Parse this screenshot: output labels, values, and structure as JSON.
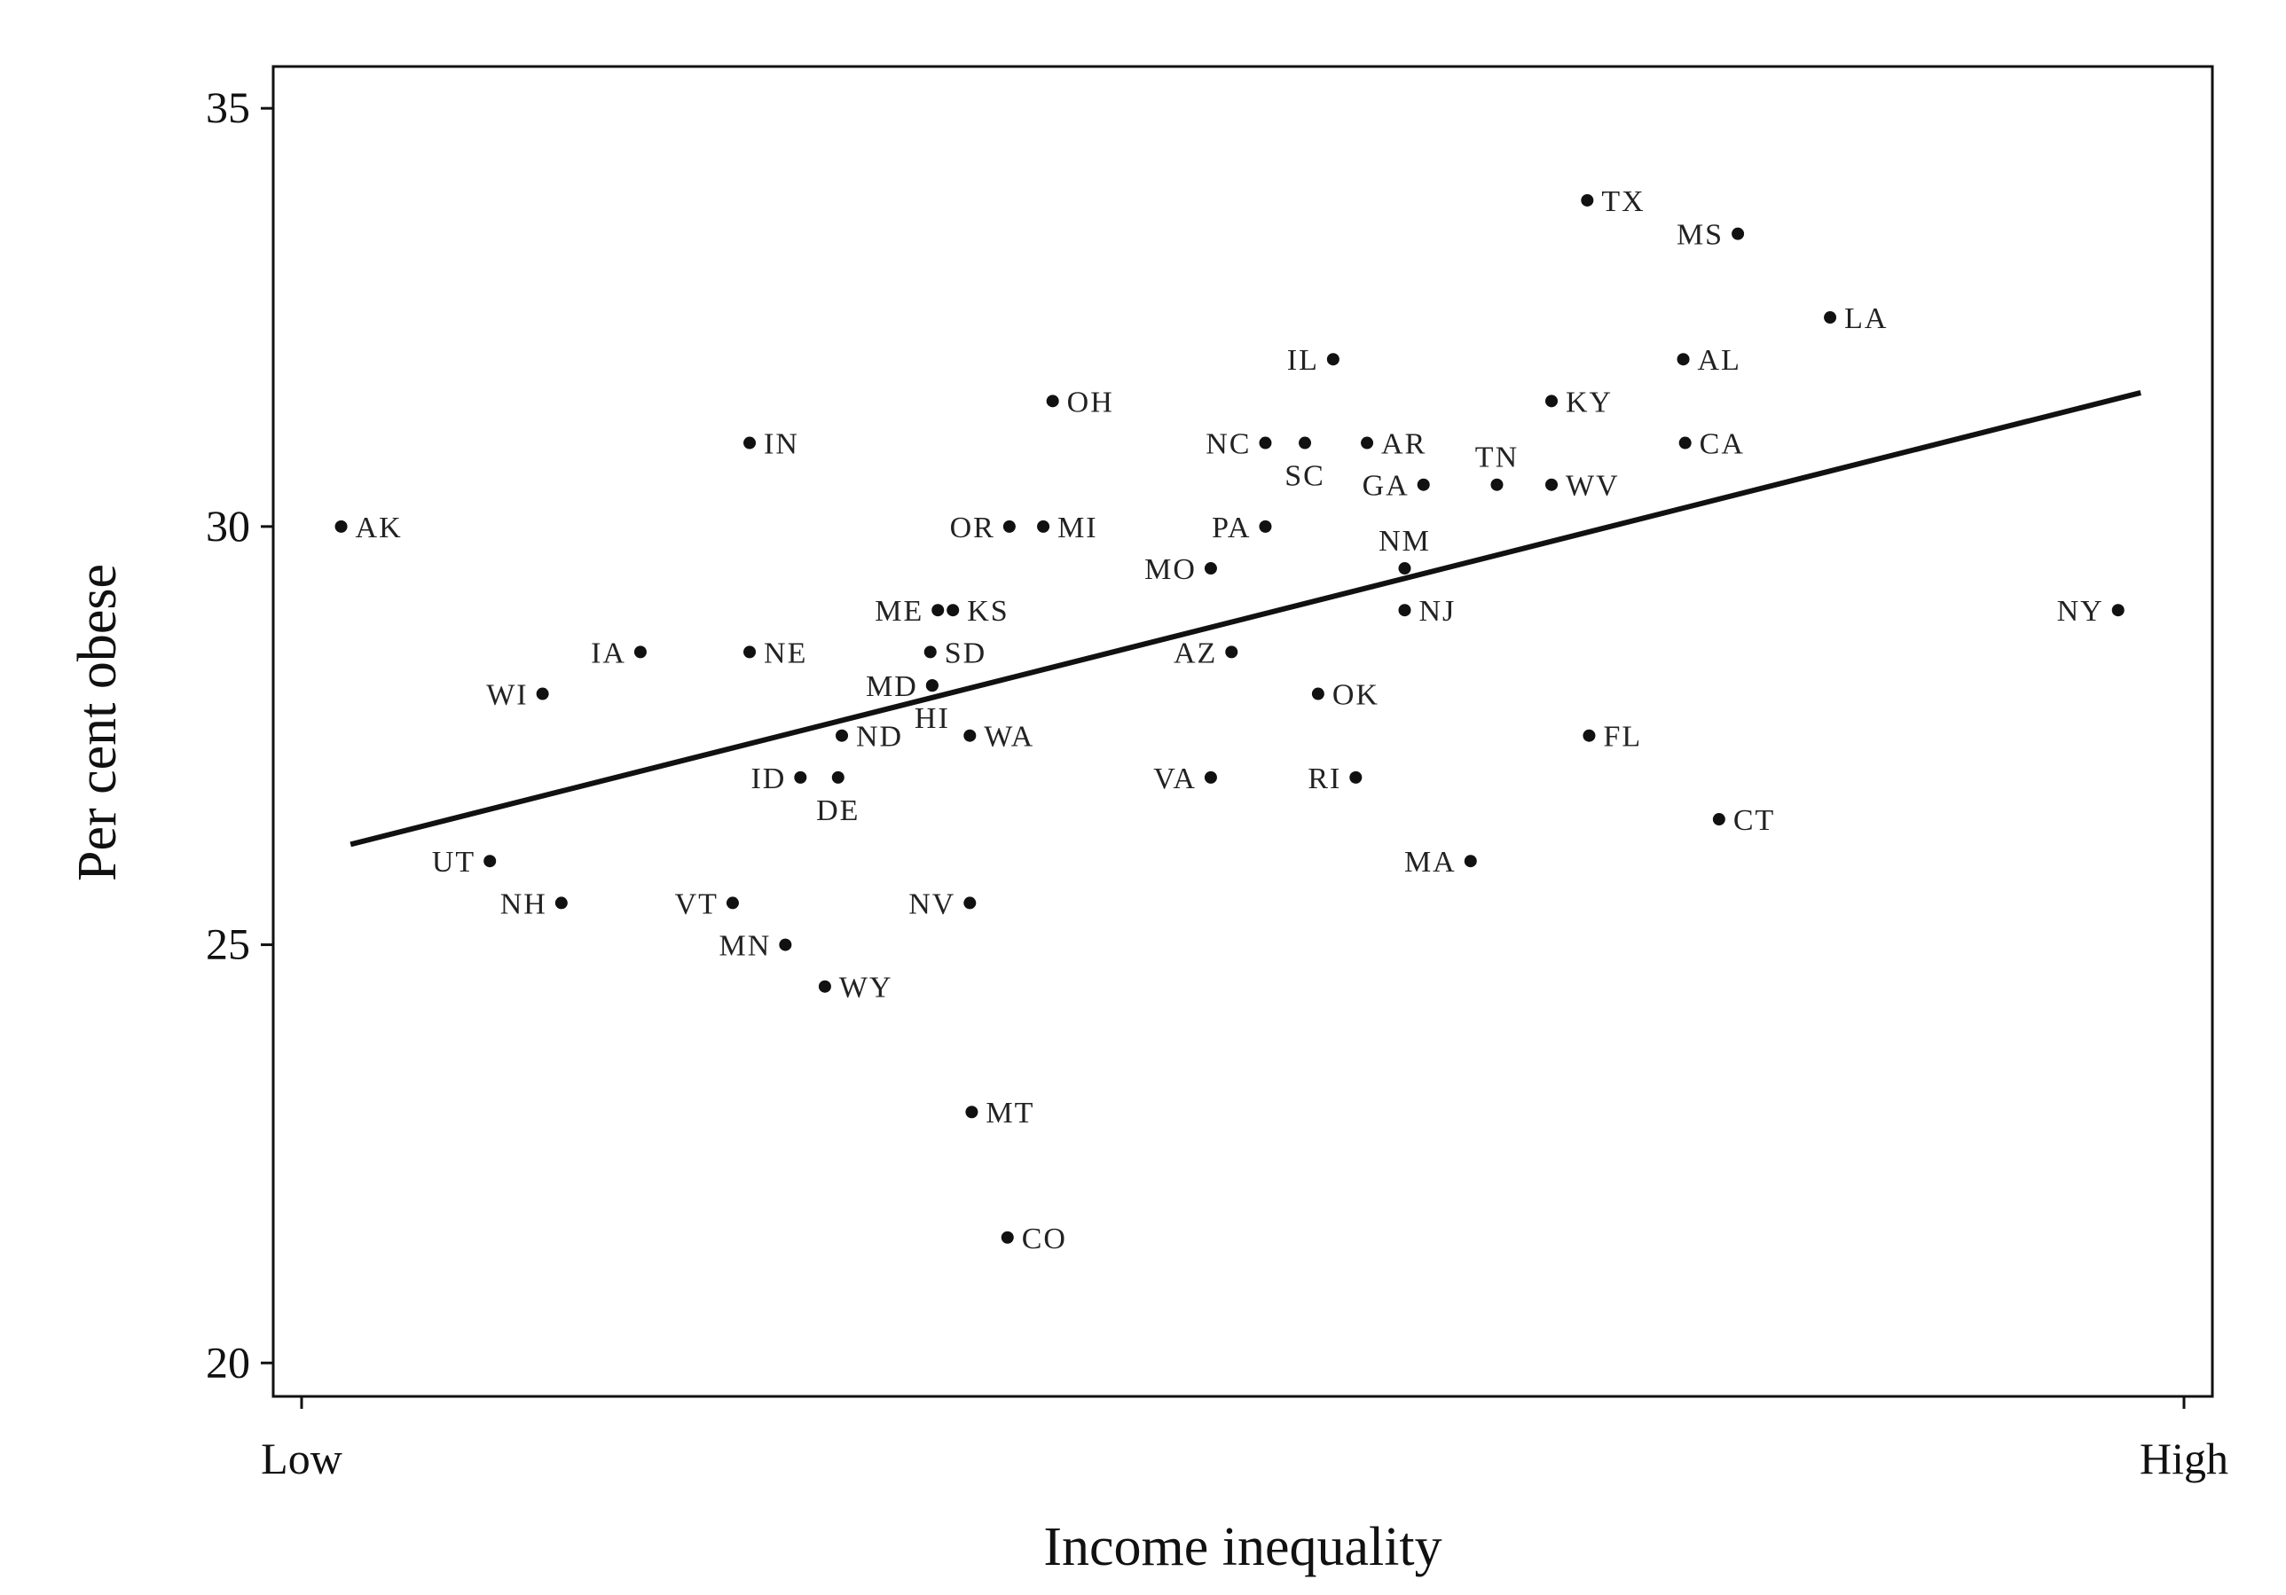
{
  "chart_data": {
    "type": "scatter",
    "title": "",
    "xlabel": "Income inequality",
    "ylabel": "Per cent obese",
    "x_tick_labels": [
      "Low",
      "High"
    ],
    "xlim": [
      0,
      100
    ],
    "ylim": [
      19.6,
      35.5
    ],
    "yticks": [
      20,
      25,
      30,
      35
    ],
    "grid": false,
    "legend": "none",
    "fit_line": {
      "x": [
        2.6,
        97.7
      ],
      "y": [
        26.2,
        31.6
      ]
    },
    "points": [
      {
        "state": "AK",
        "x": 2.1,
        "y": 30.0
      },
      {
        "state": "IN",
        "x": 23.8,
        "y": 31.0
      },
      {
        "state": "OH",
        "x": 39.9,
        "y": 31.5
      },
      {
        "state": "IL",
        "x": 54.8,
        "y": 32.0
      },
      {
        "state": "TX",
        "x": 68.3,
        "y": 33.9
      },
      {
        "state": "MS",
        "x": 76.3,
        "y": 33.5
      },
      {
        "state": "LA",
        "x": 81.2,
        "y": 32.5
      },
      {
        "state": "AL",
        "x": 73.4,
        "y": 32.0
      },
      {
        "state": "KY",
        "x": 66.4,
        "y": 31.5
      },
      {
        "state": "CA",
        "x": 73.5,
        "y": 31.0
      },
      {
        "state": "NC",
        "x": 51.2,
        "y": 31.0
      },
      {
        "state": "SC",
        "x": 53.3,
        "y": 31.0
      },
      {
        "state": "AR",
        "x": 56.6,
        "y": 31.0
      },
      {
        "state": "GA",
        "x": 59.6,
        "y": 30.5
      },
      {
        "state": "TN",
        "x": 63.5,
        "y": 30.5
      },
      {
        "state": "WV",
        "x": 66.4,
        "y": 30.5
      },
      {
        "state": "OR",
        "x": 37.6,
        "y": 30.0
      },
      {
        "state": "MI",
        "x": 39.4,
        "y": 30.0
      },
      {
        "state": "PA",
        "x": 51.2,
        "y": 30.0
      },
      {
        "state": "NM",
        "x": 58.6,
        "y": 29.5
      },
      {
        "state": "MO",
        "x": 48.3,
        "y": 29.5
      },
      {
        "state": "ME",
        "x": 33.8,
        "y": 29.0
      },
      {
        "state": "KS",
        "x": 34.6,
        "y": 29.0
      },
      {
        "state": "NJ",
        "x": 58.6,
        "y": 29.0
      },
      {
        "state": "NY",
        "x": 96.5,
        "y": 29.0
      },
      {
        "state": "IA",
        "x": 18.0,
        "y": 28.5
      },
      {
        "state": "NE",
        "x": 23.8,
        "y": 28.5
      },
      {
        "state": "SD",
        "x": 33.4,
        "y": 28.5
      },
      {
        "state": "AZ",
        "x": 49.4,
        "y": 28.5
      },
      {
        "state": "MD",
        "x": 33.5,
        "y": 28.1
      },
      {
        "state": "WI",
        "x": 12.8,
        "y": 28.0
      },
      {
        "state": "OK",
        "x": 54.0,
        "y": 28.0
      },
      {
        "state": "HI",
        "x": 33.5,
        "y": 28.1
      },
      {
        "state": "ND",
        "x": 28.7,
        "y": 27.5
      },
      {
        "state": "WA",
        "x": 35.5,
        "y": 27.5
      },
      {
        "state": "FL",
        "x": 68.4,
        "y": 27.5
      },
      {
        "state": "ID",
        "x": 26.5,
        "y": 27.0
      },
      {
        "state": "DE",
        "x": 28.5,
        "y": 27.0
      },
      {
        "state": "VA",
        "x": 48.3,
        "y": 27.0
      },
      {
        "state": "RI",
        "x": 56.0,
        "y": 27.0
      },
      {
        "state": "CT",
        "x": 75.3,
        "y": 26.5
      },
      {
        "state": "UT",
        "x": 10.0,
        "y": 26.0
      },
      {
        "state": "MA",
        "x": 62.1,
        "y": 26.0
      },
      {
        "state": "NH",
        "x": 13.8,
        "y": 25.5
      },
      {
        "state": "VT",
        "x": 22.9,
        "y": 25.5
      },
      {
        "state": "NV",
        "x": 35.5,
        "y": 25.5
      },
      {
        "state": "MN",
        "x": 25.7,
        "y": 25.0
      },
      {
        "state": "WY",
        "x": 27.8,
        "y": 24.5
      },
      {
        "state": "MT",
        "x": 35.6,
        "y": 23.0
      },
      {
        "state": "CO",
        "x": 37.5,
        "y": 21.5
      }
    ]
  }
}
